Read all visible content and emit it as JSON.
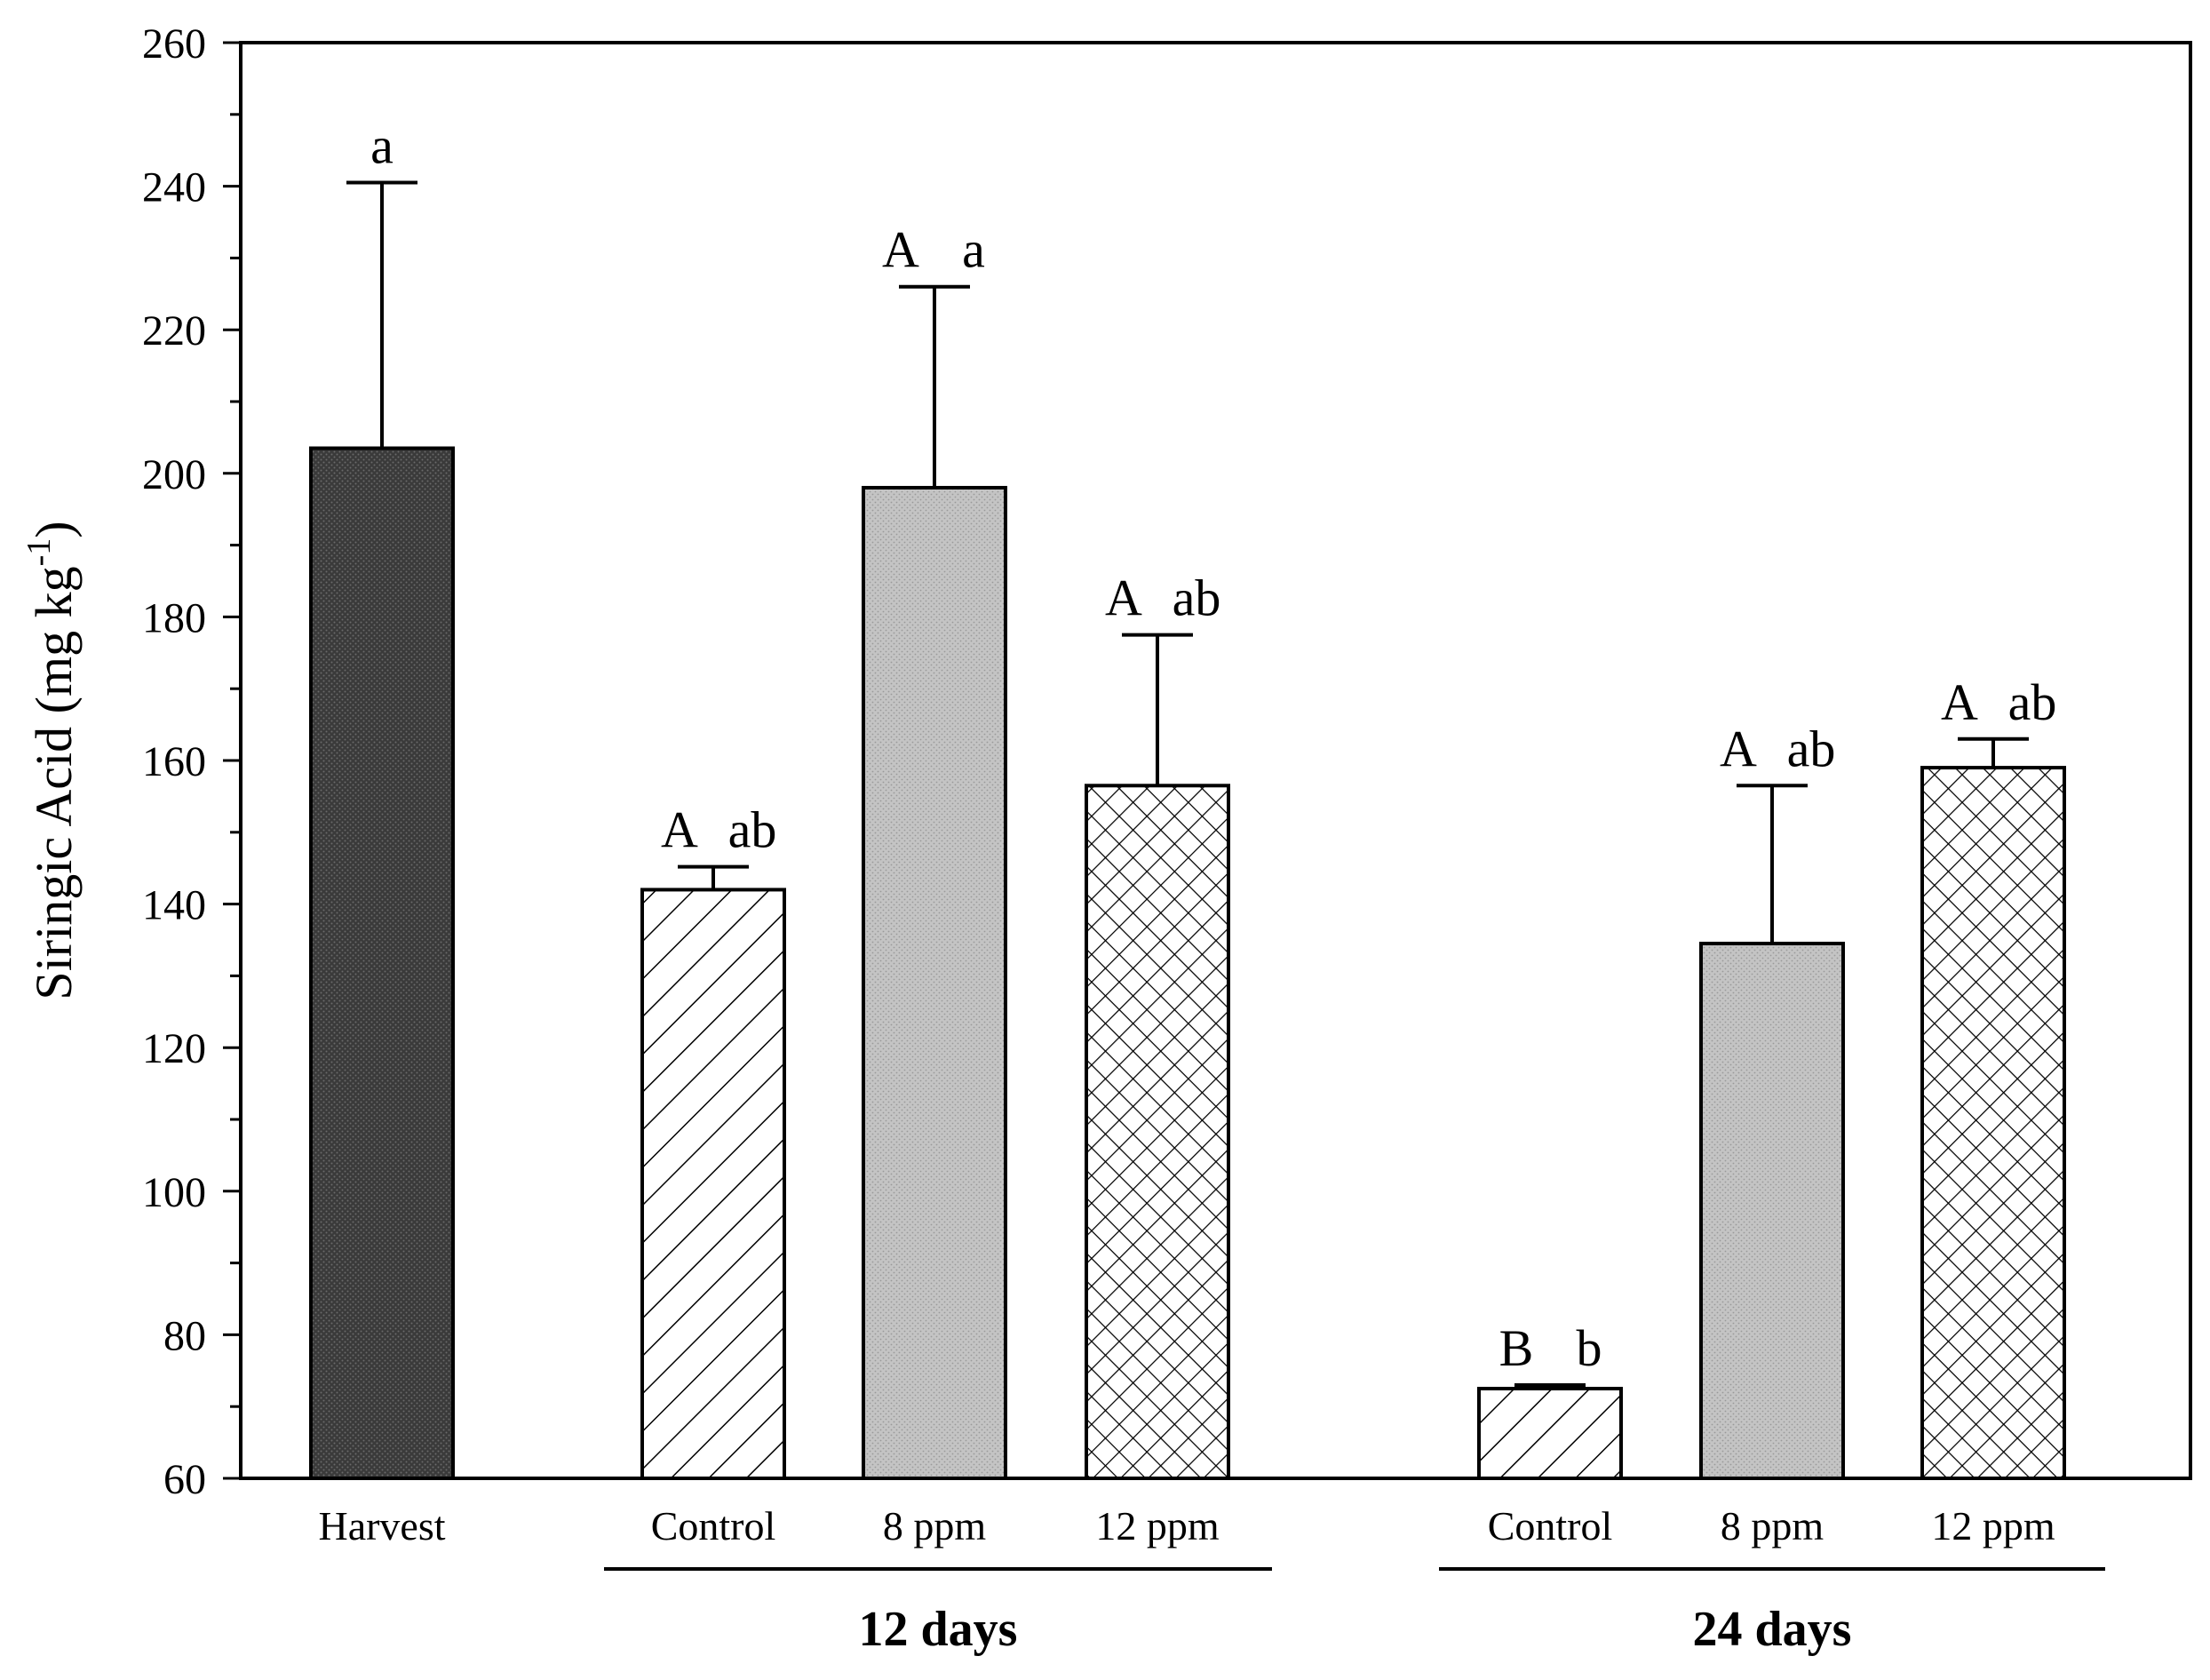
{
  "chart_data": {
    "type": "bar",
    "title": "",
    "xlabel": "",
    "ylabel": "Siringic Acid (mg kg",
    "ylabel_superscript": "-1",
    "ylabel_close": ")",
    "ylim": [
      60,
      260
    ],
    "yticks": [
      60,
      80,
      100,
      120,
      140,
      160,
      180,
      200,
      220,
      240,
      260
    ],
    "grid": false,
    "categories": [
      "Harvest",
      "Control",
      "8 ppm",
      "12 ppm",
      "Control",
      "8 ppm",
      "12 ppm"
    ],
    "groups": [
      {
        "label": "12 days",
        "members": [
          1,
          2,
          3
        ]
      },
      {
        "label": "24 days",
        "members": [
          4,
          5,
          6
        ]
      }
    ],
    "series": [
      {
        "name": "Siringic Acid",
        "values": [
          203.5,
          142,
          198,
          156.5,
          72.5,
          134.5,
          159
        ],
        "errors": [
          37,
          3.2,
          28,
          21,
          0.5,
          22,
          4
        ],
        "patterns": [
          "dark-dots",
          "diagonal-hatch",
          "gray-dots",
          "crosshatch",
          "diagonal-hatch",
          "gray-dots",
          "crosshatch"
        ],
        "letters": [
          {
            "upper": "",
            "lower": "a"
          },
          {
            "upper": "A",
            "lower": "ab"
          },
          {
            "upper": "A",
            "lower": "a"
          },
          {
            "upper": "A",
            "lower": "ab"
          },
          {
            "upper": "B",
            "lower": "b"
          },
          {
            "upper": "A",
            "lower": "ab"
          },
          {
            "upper": "A",
            "lower": "ab"
          }
        ]
      }
    ]
  }
}
